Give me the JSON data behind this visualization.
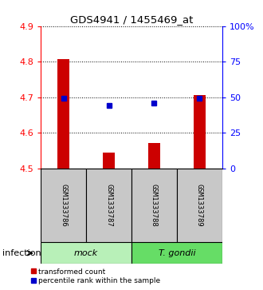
{
  "title": "GDS4941 / 1455469_at",
  "samples": [
    "GSM1333786",
    "GSM1333787",
    "GSM1333788",
    "GSM1333789"
  ],
  "transformed_counts": [
    4.806,
    4.545,
    4.572,
    4.706
  ],
  "percentile_ranks": [
    49,
    44,
    46,
    49
  ],
  "ylim_left": [
    4.5,
    4.9
  ],
  "ylim_right": [
    0,
    100
  ],
  "yticks_left": [
    4.5,
    4.6,
    4.7,
    4.8,
    4.9
  ],
  "yticks_right": [
    0,
    25,
    50,
    75,
    100
  ],
  "ytick_labels_right": [
    "0",
    "25",
    "50",
    "75",
    "100%"
  ],
  "groups": [
    {
      "label": "mock",
      "samples": [
        0,
        1
      ],
      "color": "#b8f0b8"
    },
    {
      "label": "T. gondii",
      "samples": [
        2,
        3
      ],
      "color": "#66dd66"
    }
  ],
  "factor_label": "infection",
  "bar_color": "#cc0000",
  "dot_color": "#0000cc",
  "bar_bottom": 4.5,
  "bar_width": 0.25,
  "sample_box_color": "#c8c8c8",
  "legend_items": [
    {
      "label": "transformed count",
      "color": "#cc0000",
      "marker": "s"
    },
    {
      "label": "percentile rank within the sample",
      "color": "#0000cc",
      "marker": "s"
    }
  ]
}
